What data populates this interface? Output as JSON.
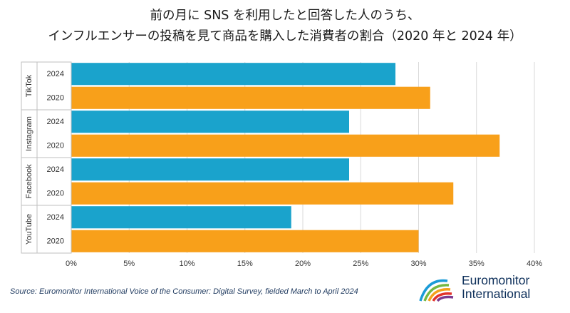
{
  "title": {
    "line1": "前の月に SNS を利用したと回答した人のうち、",
    "line2": "インフルエンサーの投稿を見て商品を購入した消費者の割合（2020 年と 2024 年）"
  },
  "chart_data": {
    "type": "bar",
    "orientation": "horizontal",
    "groups": [
      "TikTok",
      "Instagram",
      "Facebook",
      "YouTube"
    ],
    "series": [
      {
        "name": "2024",
        "color": "#1aa3cc",
        "values": [
          28,
          24,
          24,
          19
        ]
      },
      {
        "name": "2020",
        "color": "#f8a01a",
        "values": [
          31,
          37,
          33,
          30
        ]
      }
    ],
    "xlim": [
      0,
      40
    ],
    "xticks": [
      0,
      5,
      10,
      15,
      20,
      25,
      30,
      35,
      40
    ],
    "tick_suffix": "%",
    "grid": "vertical"
  },
  "source": "Source: Euromonitor International Voice of the Consumer: Digital Survey, fielded March to April 2024",
  "logo": {
    "line1": "Euromonitor",
    "line2": "International"
  }
}
